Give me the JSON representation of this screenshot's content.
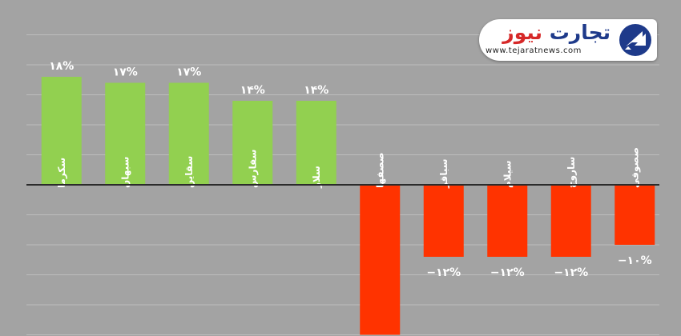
{
  "brand": {
    "name_part1": "تجارت",
    "name_part2": "نیوز",
    "url": "www.tejaratnews.com"
  },
  "colors": {
    "background": "#a3a3a3",
    "positive": "#92d050",
    "negative": "#ff3300",
    "grid": "#bcbcbc",
    "axis": "#2b2b2b",
    "label": "#ffffff"
  },
  "chart_data": {
    "type": "bar",
    "categories": [
      "سکرما",
      "سبهان",
      "سقاین",
      "سفارس",
      "سلار",
      "صصفها",
      "سباقر",
      "سیلام",
      "ساروج",
      "صصوفی"
    ],
    "values": [
      18,
      17,
      17,
      14,
      14,
      -25,
      -12,
      -12,
      -12,
      -10
    ],
    "data_labels": [
      "۱۸%",
      "۱۷%",
      "۱۷%",
      "۱۴%",
      "۱۴%",
      "",
      "−۱۲%",
      "−۱۲%",
      "−۱۲%",
      "−۱۰%"
    ],
    "ylim": [
      -25,
      25
    ],
    "grid": true,
    "legend": "none"
  }
}
